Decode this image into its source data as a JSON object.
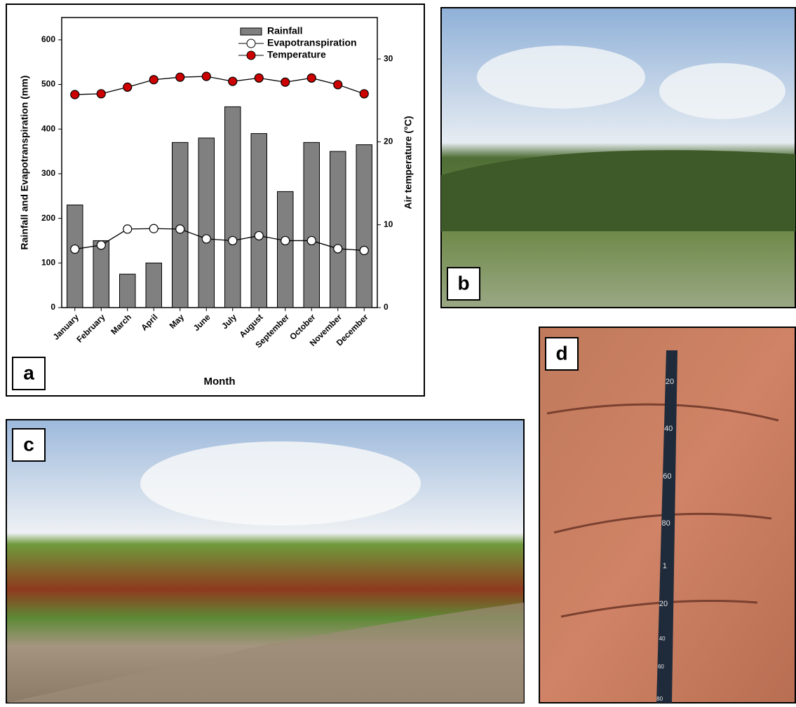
{
  "chart_data": {
    "type": "bar",
    "x_label": "Month",
    "y_label": "Rainfall and Evapotranspiration (mm)",
    "y2_label": "Air temperature (°C)",
    "categories": [
      "January",
      "February",
      "March",
      "April",
      "May",
      "June",
      "July",
      "August",
      "September",
      "October",
      "November",
      "December"
    ],
    "series": [
      {
        "name": "Rainfall",
        "type": "bar",
        "color": "#808080",
        "values": [
          230,
          150,
          75,
          100,
          370,
          380,
          450,
          390,
          260,
          370,
          350,
          365
        ]
      },
      {
        "name": "Evapotranspiration",
        "type": "line",
        "color": "#ffffff",
        "values": [
          131,
          140,
          176,
          177,
          176,
          154,
          150,
          161,
          150,
          150,
          132,
          128
        ]
      },
      {
        "name": "Temperature",
        "type": "line",
        "color": "#cc0000",
        "axis": "y2",
        "values": [
          25.7,
          25.8,
          26.6,
          27.5,
          27.8,
          27.9,
          27.3,
          27.7,
          27.2,
          27.7,
          26.9,
          25.8
        ]
      }
    ],
    "ylim": [
      0,
      650
    ],
    "yticks": [
      0,
      100,
      200,
      300,
      400,
      500,
      600
    ],
    "y2lim": [
      0,
      35
    ],
    "y2ticks": [
      0,
      10,
      20,
      30
    ],
    "legend": "upper right"
  },
  "panel_labels": [
    "a",
    "b",
    "c",
    "d"
  ],
  "ruler_labels": [
    "20",
    "40",
    "60",
    "80",
    "1",
    "20",
    "40",
    "60",
    "80"
  ]
}
